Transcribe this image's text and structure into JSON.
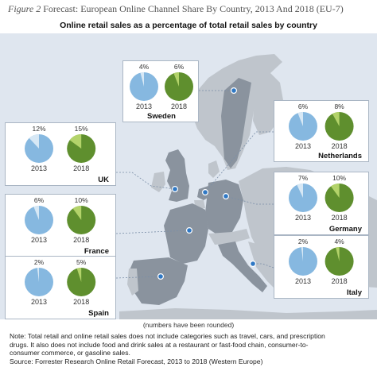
{
  "figure": {
    "label": "Figure 2",
    "title": "Forecast: European Online Channel Share By Country, 2013 And 2018 (EU-7)"
  },
  "chart_data": {
    "type": "pie",
    "title": "Online retail sales as a percentage of total retail sales by country",
    "years": [
      "2013",
      "2018"
    ],
    "countries": [
      {
        "name": "Sweden",
        "values": [
          4,
          6
        ],
        "labels": [
          "4%",
          "6%"
        ]
      },
      {
        "name": "Netherlands",
        "values": [
          6,
          8
        ],
        "labels": [
          "6%",
          "8%"
        ]
      },
      {
        "name": "UK",
        "values": [
          12,
          15
        ],
        "labels": [
          "12%",
          "15%"
        ]
      },
      {
        "name": "Germany",
        "values": [
          7,
          10
        ],
        "labels": [
          "7%",
          "10%"
        ]
      },
      {
        "name": "France",
        "values": [
          6,
          10
        ],
        "labels": [
          "6%",
          "10%"
        ]
      },
      {
        "name": "Italy",
        "values": [
          2,
          4
        ],
        "labels": [
          "2%",
          "4%"
        ]
      },
      {
        "name": "Spain",
        "values": [
          2,
          5
        ],
        "labels": [
          "2%",
          "5%"
        ]
      }
    ],
    "colors": {
      "pie_2013": "#86b8e0",
      "slice_2013": "#d7e8f5",
      "pie_2018": "#5f8f2e",
      "slice_2018": "#b3d36a",
      "land": "#8a939e",
      "land_other": "#bfc5cc",
      "sea": "#dfe6ef",
      "marker": "#2f78c4",
      "leader": "#7b8fa8"
    }
  },
  "rounded_note": "(numbers have been rounded)",
  "note_lines": [
    "Note: Total retail and online retail sales does not include categories such as travel, cars, and prescription",
    "drugs. It also does not include food and drink sales at a restaurant or fast-food chain, consumer-to-",
    "consumer commerce, or gasoline sales.",
    "Source: Forrester Research Online Retail Forecast, 2013 to 2018 (Western Europe)"
  ]
}
